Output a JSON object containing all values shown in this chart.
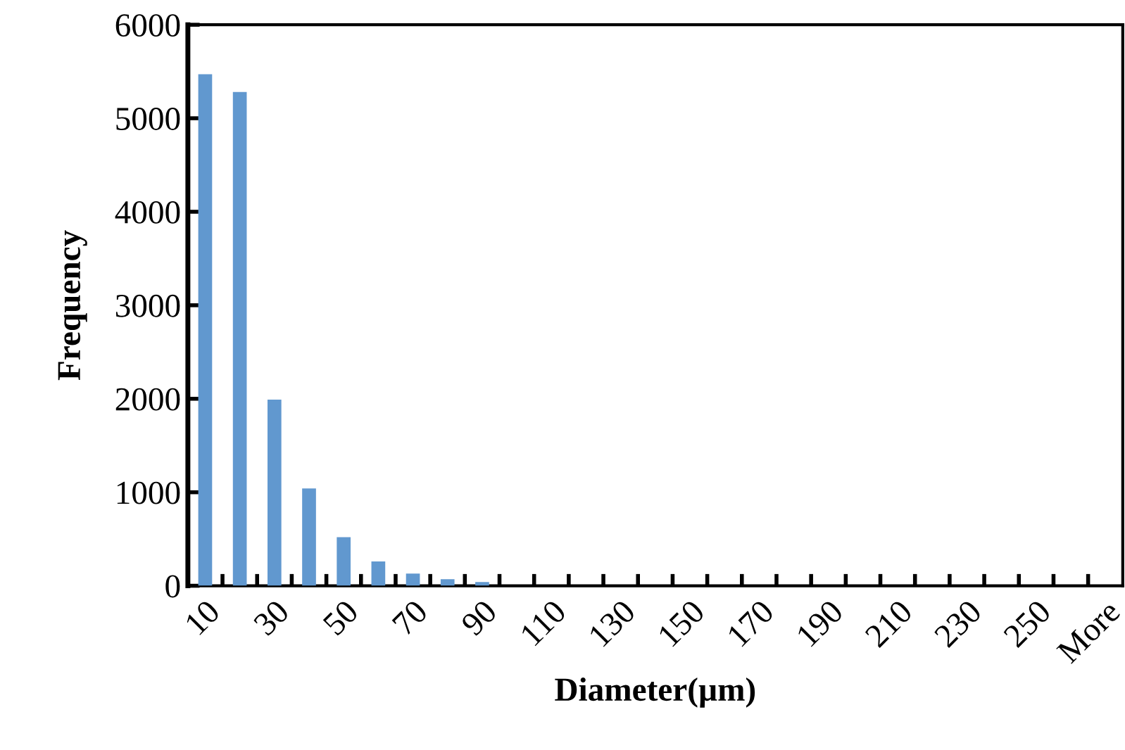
{
  "chart_data": {
    "type": "bar",
    "xlabel": "Diameter(µm)",
    "ylabel": "Frequency",
    "categories": [
      "10",
      null,
      "30",
      null,
      "50",
      null,
      "70",
      null,
      "90",
      null,
      "110",
      null,
      "130",
      null,
      "150",
      null,
      "170",
      null,
      "190",
      null,
      "210",
      null,
      "230",
      null,
      "250",
      null,
      "More"
    ],
    "values": [
      5470,
      5280,
      1990,
      1040,
      520,
      260,
      130,
      70,
      40,
      0,
      0,
      0,
      0,
      0,
      0,
      0,
      0,
      0,
      0,
      0,
      0,
      0,
      0,
      0,
      0,
      0,
      0
    ],
    "color": "#6198cf",
    "ylim": [
      0,
      6000
    ],
    "yticks": [
      0,
      1000,
      2000,
      3000,
      4000,
      5000,
      6000
    ],
    "grid": false,
    "legend": false
  }
}
